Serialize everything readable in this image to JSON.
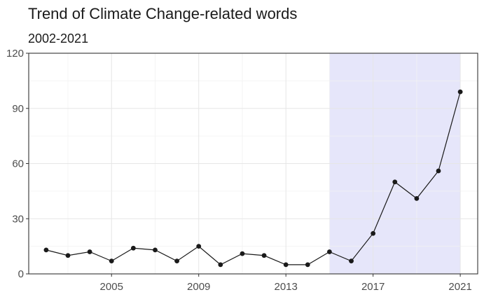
{
  "chart_data": {
    "type": "line",
    "title": "Trend of Climate Change-related words",
    "subtitle": "2002-2021",
    "xlabel": "",
    "ylabel": "",
    "xlim": [
      2001.2,
      2021.8
    ],
    "ylim": [
      0,
      120
    ],
    "x_ticks": [
      2005,
      2009,
      2013,
      2017,
      2021
    ],
    "y_ticks": [
      0,
      30,
      60,
      90,
      120
    ],
    "grid": true,
    "legend": "none",
    "highlight_region": {
      "x_start": 2015,
      "x_end": 2021,
      "color": "#e6e6fa"
    },
    "series": [
      {
        "x": [
          2002,
          2003,
          2004,
          2005,
          2006,
          2007,
          2008,
          2009,
          2010,
          2011,
          2012,
          2013,
          2014,
          2015,
          2016,
          2017,
          2018,
          2019,
          2020,
          2021
        ],
        "values": [
          13,
          10,
          12,
          7,
          14,
          13,
          7,
          15,
          5,
          11,
          10,
          5,
          5,
          12,
          7,
          22,
          50,
          41,
          56,
          99
        ],
        "color": "#1a1a1a"
      }
    ]
  }
}
